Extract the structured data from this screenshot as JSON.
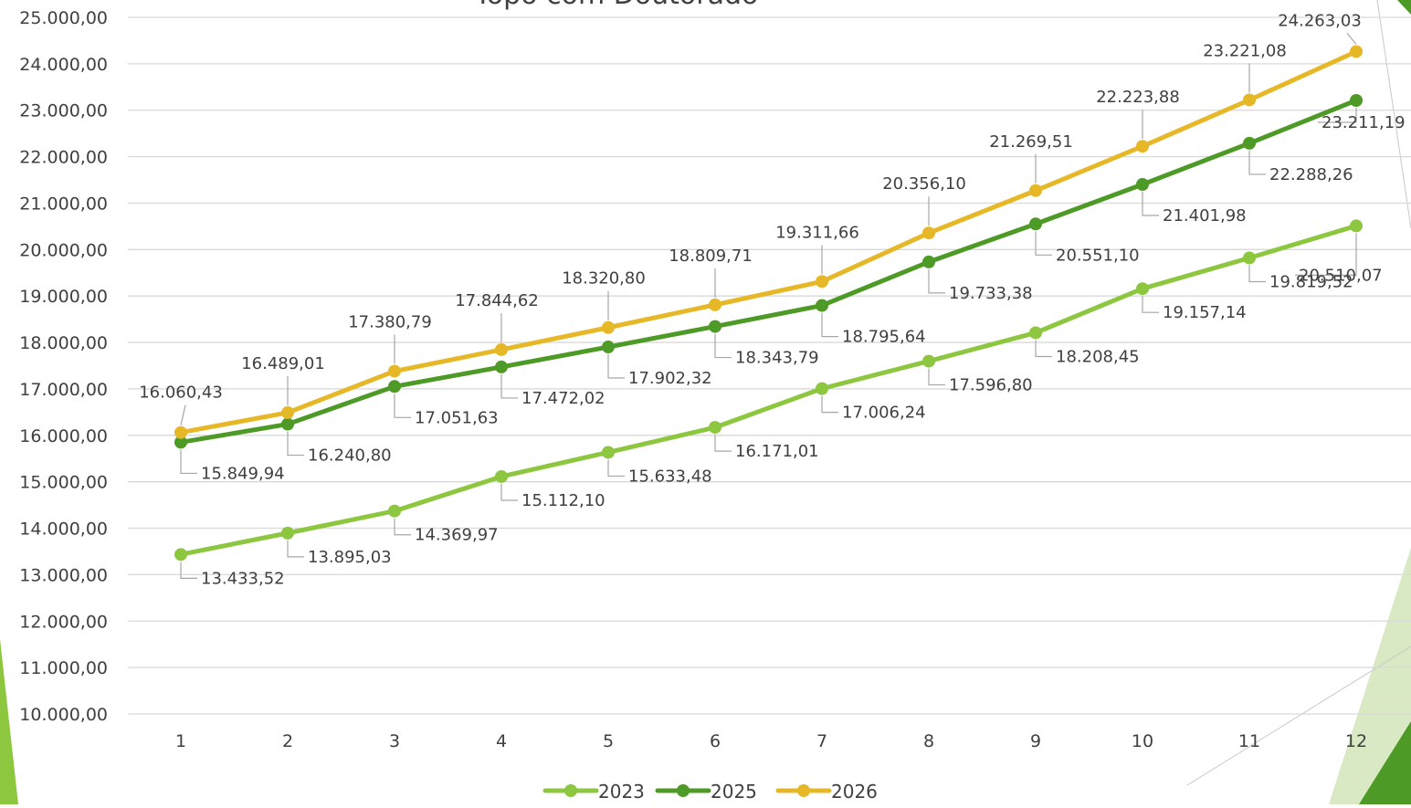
{
  "chart_data": {
    "type": "line",
    "title": "Topo com Doutorado",
    "categories": [
      "1",
      "2",
      "3",
      "4",
      "5",
      "6",
      "7",
      "8",
      "9",
      "10",
      "11",
      "12"
    ],
    "ylim": [
      10000,
      25000
    ],
    "ytick_labels": [
      "10.000,00",
      "11.000,00",
      "12.000,00",
      "13.000,00",
      "14.000,00",
      "15.000,00",
      "16.000,00",
      "17.000,00",
      "18.000,00",
      "19.000,00",
      "20.000,00",
      "21.000,00",
      "22.000,00",
      "23.000,00",
      "24.000,00",
      "25.000,00"
    ],
    "grid": true,
    "legend_position": "bottom",
    "series": [
      {
        "name": "2023",
        "color": "#8dc63f",
        "values": [
          13433.52,
          13895.03,
          14369.97,
          15112.1,
          15633.48,
          16171.01,
          17006.24,
          17596.8,
          18208.45,
          19157.14,
          19819.52,
          20510.07
        ],
        "labels": [
          "13.433,52",
          "13.895,03",
          "14.369,97",
          "15.112,10",
          "15.633,48",
          "16.171,01",
          "17.006,24",
          "17.596,80",
          "18.208,45",
          "19.157,14",
          "19.819,52",
          "20.510,07"
        ]
      },
      {
        "name": "2025",
        "color": "#4e9a26",
        "values": [
          15849.94,
          16240.8,
          17051.63,
          17472.02,
          17902.32,
          18343.79,
          18795.64,
          19733.38,
          20551.1,
          21401.98,
          22288.26,
          23211.19
        ],
        "labels": [
          "15.849,94",
          "16.240,80",
          "17.051,63",
          "17.472,02",
          "17.902,32",
          "18.343,79",
          "18.795,64",
          "19.733,38",
          "20.551,10",
          "21.401,98",
          "22.288,26",
          "23.211,19"
        ]
      },
      {
        "name": "2026",
        "color": "#e6b828",
        "values": [
          16060.43,
          16489.01,
          17380.79,
          17844.62,
          18320.8,
          18809.71,
          19311.66,
          20356.1,
          21269.51,
          22223.88,
          23221.08,
          24263.03
        ],
        "labels": [
          "16.060,43",
          "16.489,01",
          "17.380,79",
          "17.844,62",
          "18.320,80",
          "18.809,71",
          "19.311,66",
          "20.356,10",
          "21.269,51",
          "22.223,88",
          "23.221,08",
          "24.263,03"
        ]
      }
    ]
  },
  "decoration_colors": [
    "#8dc63f",
    "#4e9a26",
    "#d9e9c3"
  ]
}
